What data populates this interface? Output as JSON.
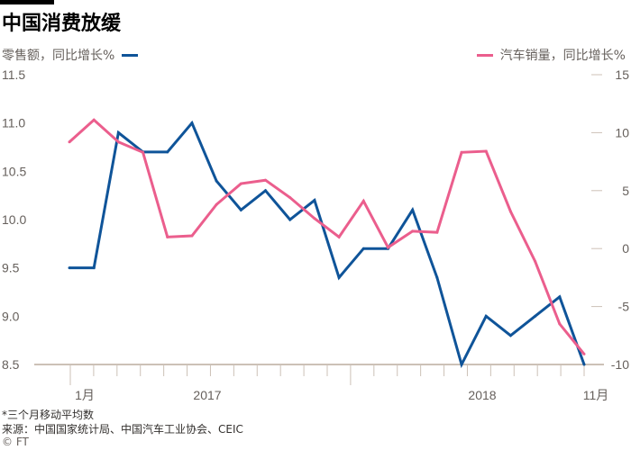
{
  "title": "中国消费放缓",
  "colors": {
    "retail": "#0f5499",
    "cars": "#eb5e8d",
    "axis": "#ccc1b7"
  },
  "chart_data": {
    "type": "line",
    "title": "中国消费放缓",
    "x_tick_labels": [
      "1月",
      "2017",
      "2018",
      "11月"
    ],
    "left_axis": {
      "label": "零售额，同比增长%",
      "ticks": [
        "11.5",
        "11.0",
        "10.5",
        "10.0",
        "9.5",
        "9.0",
        "8.5"
      ],
      "range": [
        8.5,
        11.5
      ]
    },
    "right_axis": {
      "label": "汽车销量，同比增长%",
      "ticks": [
        "15",
        "10",
        "5",
        "0",
        "-5",
        "-10"
      ],
      "range": [
        -10,
        15
      ]
    },
    "series": [
      {
        "name": "零售额，同比增长%",
        "axis": "left",
        "color": "#0f5499",
        "values": [
          9.5,
          9.5,
          10.9,
          10.7,
          10.7,
          11.0,
          10.4,
          10.1,
          10.3,
          10.0,
          10.2,
          9.4,
          9.7,
          9.7,
          10.1,
          9.4,
          8.5,
          9.0,
          8.8,
          9.0,
          9.2,
          8.5
        ]
      },
      {
        "name": "汽车销量，同比增长%",
        "axis": "right",
        "color": "#eb5e8d",
        "values": [
          9.2,
          11.1,
          9.2,
          8.3,
          1.0,
          1.1,
          3.8,
          5.6,
          5.9,
          4.4,
          2.6,
          1.0,
          4.1,
          0.1,
          1.5,
          1.4,
          8.3,
          8.4,
          3.2,
          -1.1,
          -6.5,
          -9.1
        ]
      }
    ],
    "month_ticks": 23,
    "grid": false
  },
  "notes": {
    "footnote": "*三个月移动平均数",
    "source": "来源：中国国家统计局、中国汽车工业协会、CEIC",
    "copyright": "© FT"
  }
}
